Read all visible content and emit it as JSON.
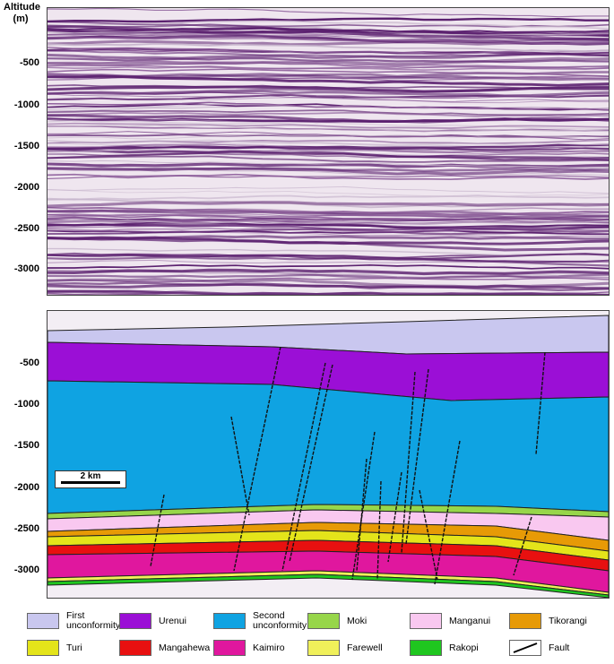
{
  "axis": {
    "title": "Altitude\n(m)",
    "top_ticks": [
      "-500",
      "-1000",
      "-1500",
      "-2000",
      "-2500",
      "-3000"
    ],
    "bottom_ticks": [
      "-500",
      "-1000",
      "-1500",
      "-2000",
      "-2500",
      "-3000"
    ]
  },
  "scale_bar": {
    "label": "2 km"
  },
  "layer_colors": {
    "first_unconformity": "#c9c7ef",
    "urenui": "#9b0fd6",
    "second_unconformity": "#0fa3e2",
    "moki": "#97d64a",
    "manganui": "#f9c8f0",
    "tikorangi": "#e79a06",
    "turi": "#e4e41a",
    "mangahewa": "#e81010",
    "kaimiro": "#e0179e",
    "farewell": "#f0f05a",
    "rakopi": "#1fc61f"
  },
  "legend": [
    {
      "label": "First\nunconformity",
      "color": "#c9c7ef"
    },
    {
      "label": "Urenui",
      "color": "#9b0fd6"
    },
    {
      "label": "Second\nunconformity",
      "color": "#0fa3e2"
    },
    {
      "label": "Moki",
      "color": "#97d64a"
    },
    {
      "label": "Manganui",
      "color": "#f9c8f0"
    },
    {
      "label": "Tikorangi",
      "color": "#e79a06"
    },
    {
      "label": "Turi",
      "color": "#e4e41a"
    },
    {
      "label": "Mangahewa",
      "color": "#e81010"
    },
    {
      "label": "Kaimiro",
      "color": "#e0179e"
    },
    {
      "label": "Farewell",
      "color": "#f0f05a"
    },
    {
      "label": "Rakopi",
      "color": "#1fc61f"
    },
    {
      "label": "Fault",
      "color": "#ffffff"
    }
  ]
}
